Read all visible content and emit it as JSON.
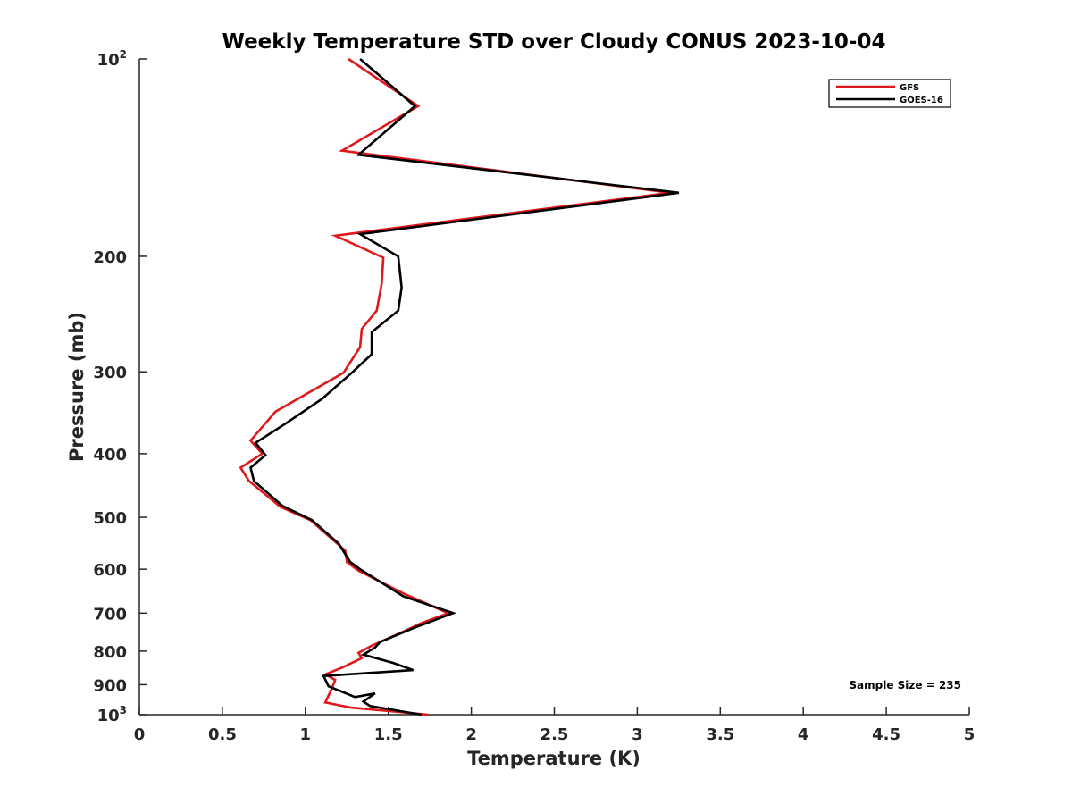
{
  "chart_data": {
    "type": "line",
    "title": "Weekly Temperature STD over Cloudy CONUS 2023-10-04",
    "xlabel": "Temperature (K)",
    "ylabel": "Pressure (mb)",
    "xlim": [
      0,
      5
    ],
    "ylim": [
      100,
      1000
    ],
    "y_scale": "log",
    "y_reversed": true,
    "grid": false,
    "legend_position": "top-right",
    "x_ticks": [
      "0",
      "0.5",
      "1",
      "1.5",
      "2",
      "2.5",
      "3",
      "3.5",
      "4",
      "4.5",
      "5"
    ],
    "y_ticks": [
      {
        "value": 100,
        "base": "10",
        "exp": "2"
      },
      {
        "value": 200,
        "label": "200"
      },
      {
        "value": 300,
        "label": "300"
      },
      {
        "value": 400,
        "label": "400"
      },
      {
        "value": 500,
        "label": "500"
      },
      {
        "value": 600,
        "label": "600"
      },
      {
        "value": 700,
        "label": "700"
      },
      {
        "value": 800,
        "label": "800"
      },
      {
        "value": 900,
        "label": "900"
      },
      {
        "value": 1000,
        "base": "10",
        "exp": "3"
      }
    ],
    "series": [
      {
        "name": "GFS",
        "color": "#e0181b",
        "points": [
          [
            1.26,
            100
          ],
          [
            1.68,
            118
          ],
          [
            1.22,
            138
          ],
          [
            3.2,
            160
          ],
          [
            1.18,
            186
          ],
          [
            1.47,
            201
          ],
          [
            1.46,
            220
          ],
          [
            1.43,
            242
          ],
          [
            1.34,
            258
          ],
          [
            1.33,
            275
          ],
          [
            1.23,
            301
          ],
          [
            0.82,
            345
          ],
          [
            0.67,
            382
          ],
          [
            0.74,
            400
          ],
          [
            0.61,
            420
          ],
          [
            0.66,
            440
          ],
          [
            0.85,
            482
          ],
          [
            1.03,
            505
          ],
          [
            1.24,
            562
          ],
          [
            1.25,
            585
          ],
          [
            1.32,
            603
          ],
          [
            1.6,
            655
          ],
          [
            1.86,
            700
          ],
          [
            1.7,
            725
          ],
          [
            1.55,
            755
          ],
          [
            1.4,
            785
          ],
          [
            1.32,
            805
          ],
          [
            1.34,
            820
          ],
          [
            1.22,
            848
          ],
          [
            1.12,
            868
          ],
          [
            1.18,
            885
          ],
          [
            1.16,
            912
          ],
          [
            1.12,
            958
          ],
          [
            1.27,
            975
          ],
          [
            1.74,
            1000
          ]
        ]
      },
      {
        "name": "GOES-16",
        "color": "#000000",
        "points": [
          [
            1.33,
            100
          ],
          [
            1.66,
            118
          ],
          [
            1.32,
            140
          ],
          [
            3.25,
            160
          ],
          [
            1.33,
            185
          ],
          [
            1.56,
            200
          ],
          [
            1.58,
            223
          ],
          [
            1.56,
            242
          ],
          [
            1.4,
            261
          ],
          [
            1.4,
            282
          ],
          [
            1.28,
            301
          ],
          [
            1.1,
            330
          ],
          [
            0.88,
            360
          ],
          [
            0.7,
            385
          ],
          [
            0.76,
            402
          ],
          [
            0.67,
            420
          ],
          [
            0.69,
            440
          ],
          [
            0.86,
            480
          ],
          [
            1.04,
            505
          ],
          [
            1.2,
            548
          ],
          [
            1.27,
            585
          ],
          [
            1.33,
            600
          ],
          [
            1.59,
            660
          ],
          [
            1.89,
            700
          ],
          [
            1.65,
            738
          ],
          [
            1.45,
            775
          ],
          [
            1.42,
            790
          ],
          [
            1.35,
            810
          ],
          [
            1.53,
            834
          ],
          [
            1.65,
            855
          ],
          [
            1.11,
            873
          ],
          [
            1.14,
            905
          ],
          [
            1.3,
            940
          ],
          [
            1.42,
            928
          ],
          [
            1.35,
            955
          ],
          [
            1.39,
            970
          ],
          [
            1.7,
            1000
          ]
        ]
      }
    ],
    "annotation": "Sample Size = 235"
  }
}
